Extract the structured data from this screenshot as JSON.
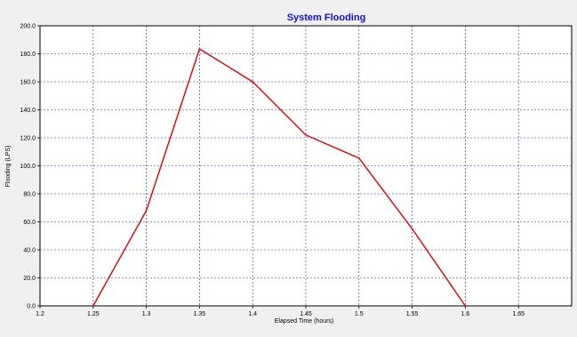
{
  "chart_data": {
    "type": "line",
    "title": "System Flooding",
    "xlabel": "Elapsed Time (hours)",
    "ylabel": "Flooding (LPS)",
    "xlim": [
      1.2,
      1.7
    ],
    "ylim": [
      0,
      200
    ],
    "x_ticks": [
      "1.2",
      "1.25",
      "1.3",
      "1.35",
      "1.4",
      "1.45",
      "1.5",
      "1.55",
      "1.6",
      "1.65"
    ],
    "y_ticks": [
      "0.0",
      "20.0",
      "40.0",
      "60.0",
      "80.0",
      "100.0",
      "120.0",
      "140.0",
      "160.0",
      "180.0",
      "200.0"
    ],
    "grid": true,
    "series": [
      {
        "x": [
          1.25,
          1.3,
          1.35,
          1.4,
          1.45,
          1.5,
          1.55,
          1.6
        ],
        "y": [
          0,
          68,
          183.5,
          160,
          122,
          105.5,
          55,
          0
        ],
        "color": "#e00000"
      }
    ],
    "colors": {
      "title": "#1010e0",
      "grid": "#2020c0",
      "background": "#f0f0f0",
      "plot_background": "#ffffff"
    }
  }
}
